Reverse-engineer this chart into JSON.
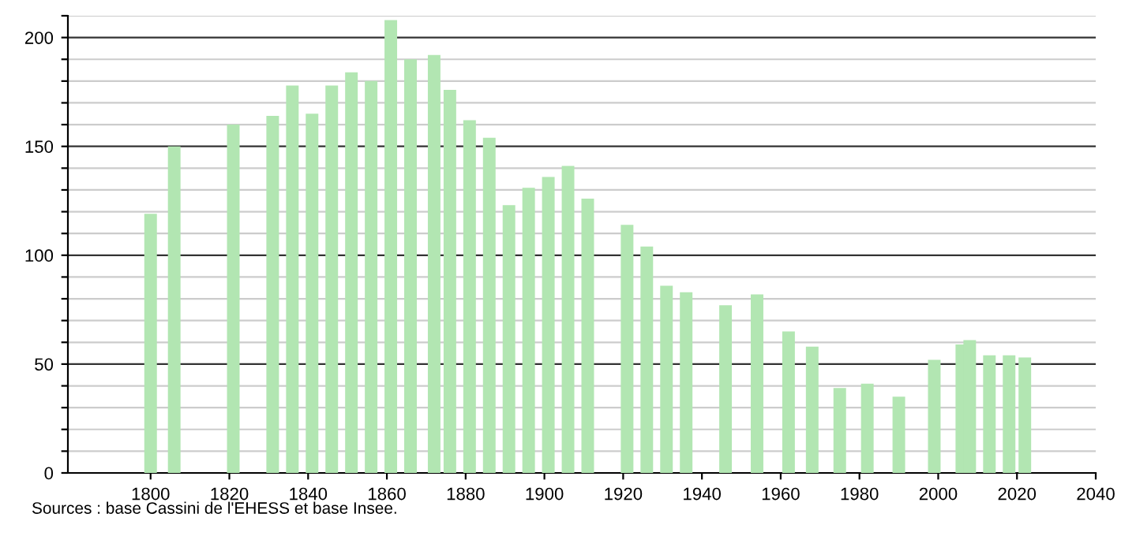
{
  "chart_data": {
    "type": "bar",
    "color": "#b2e6b2",
    "x": [
      1800,
      1806,
      1821,
      1831,
      1836,
      1841,
      1846,
      1851,
      1856,
      1861,
      1866,
      1872,
      1876,
      1881,
      1886,
      1891,
      1896,
      1901,
      1906,
      1911,
      1921,
      1926,
      1931,
      1936,
      1946,
      1954,
      1962,
      1968,
      1975,
      1982,
      1990,
      1999,
      2006,
      2008,
      2013,
      2018,
      2022
    ],
    "values": [
      119,
      150,
      160,
      164,
      178,
      165,
      178,
      184,
      180,
      208,
      190,
      192,
      176,
      162,
      154,
      123,
      131,
      136,
      141,
      126,
      114,
      104,
      86,
      83,
      77,
      82,
      65,
      58,
      39,
      41,
      35,
      52,
      59,
      61,
      54,
      54,
      53
    ],
    "xlim": [
      1779,
      2040
    ],
    "xticks": [
      1800,
      1820,
      1840,
      1860,
      1880,
      1900,
      1920,
      1940,
      1960,
      1980,
      2000,
      2020,
      2040
    ],
    "ylim": [
      0,
      210
    ],
    "yticks": [
      0,
      {
        "value": 10,
        "label": null
      },
      {
        "value": 20,
        "label": null
      },
      {
        "value": 30,
        "label": null
      },
      {
        "value": 40,
        "label": null
      },
      50,
      {
        "value": 60,
        "label": null
      },
      {
        "value": 70,
        "label": null
      },
      {
        "value": 80,
        "label": null
      },
      {
        "value": 90,
        "label": null
      },
      100,
      {
        "value": 110,
        "label": null
      },
      {
        "value": 120,
        "label": null
      },
      {
        "value": 130,
        "label": null
      },
      {
        "value": 140,
        "label": null
      },
      150,
      {
        "value": 160,
        "label": null
      },
      {
        "value": 170,
        "label": null
      },
      {
        "value": 180,
        "label": null
      },
      {
        "value": 190,
        "label": null
      },
      200,
      {
        "value": 210,
        "label": null
      }
    ],
    "grid": "y",
    "annotations": [
      "Sources : base Cassini de l'EHESS et base Insee."
    ]
  }
}
